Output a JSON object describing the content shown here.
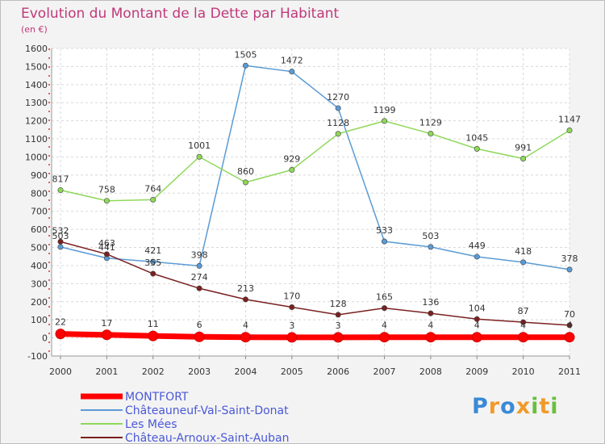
{
  "chart_data": {
    "type": "line",
    "title": "Evolution du Montant de la Dette par Habitant",
    "unit_label": "(en €)",
    "categories": [
      "2000",
      "2001",
      "2002",
      "2003",
      "2004",
      "2005",
      "2006",
      "2007",
      "2008",
      "2009",
      "2010",
      "2011"
    ],
    "yticks": [
      "-100",
      "0",
      "100",
      "200",
      "300",
      "400",
      "500",
      "600",
      "700",
      "800",
      "900",
      "1000",
      "1100",
      "1200",
      "1300",
      "1400",
      "1500",
      "1600"
    ],
    "ylim": [
      -100,
      1600
    ],
    "series": [
      {
        "name": "MONTFORT",
        "color": "#ff0000",
        "values": [
          22,
          17,
          11,
          6,
          4,
          3,
          3,
          4,
          4,
          4,
          4,
          4
        ],
        "labels": [
          "22",
          "17",
          "11",
          "6",
          "4",
          "3",
          "3",
          "4",
          "4",
          "4",
          "4",
          "4"
        ]
      },
      {
        "name": "Châteauneuf-Val-Saint-Donat",
        "color": "#5b9bd5",
        "values": [
          503,
          441,
          421,
          398,
          1505,
          1472,
          1270,
          533,
          503,
          449,
          418,
          378
        ],
        "labels": [
          "503",
          "441",
          "421",
          "398",
          "1505",
          "1472",
          "1270",
          "533",
          "503",
          "449",
          "418",
          "378"
        ]
      },
      {
        "name": "Les Mées",
        "color": "#8fd85a",
        "values": [
          817,
          758,
          764,
          1001,
          860,
          929,
          1128,
          1199,
          1129,
          1045,
          991,
          1147
        ],
        "labels": [
          "817",
          "758",
          "764",
          "1001",
          "860",
          "929",
          "1128",
          "1199",
          "1129",
          "1045",
          "991",
          "1147"
        ]
      },
      {
        "name": "Château-Arnoux-Saint-Auban",
        "color": "#7b2020",
        "values": [
          532,
          463,
          355,
          274,
          213,
          170,
          128,
          165,
          136,
          104,
          87,
          70
        ],
        "labels": [
          "532",
          "463",
          "355",
          "274",
          "213",
          "170",
          "128",
          "165",
          "136",
          "104",
          "87",
          "70"
        ]
      }
    ]
  },
  "logo": {
    "letters": [
      "P",
      "r",
      "o",
      "x",
      "i",
      "t",
      "i"
    ],
    "colors": [
      "#3a8ad6",
      "#f19a2a",
      "#3a8ad6",
      "#f19a2a",
      "#6abf3f",
      "#f19a2a",
      "#6abf3f"
    ]
  }
}
